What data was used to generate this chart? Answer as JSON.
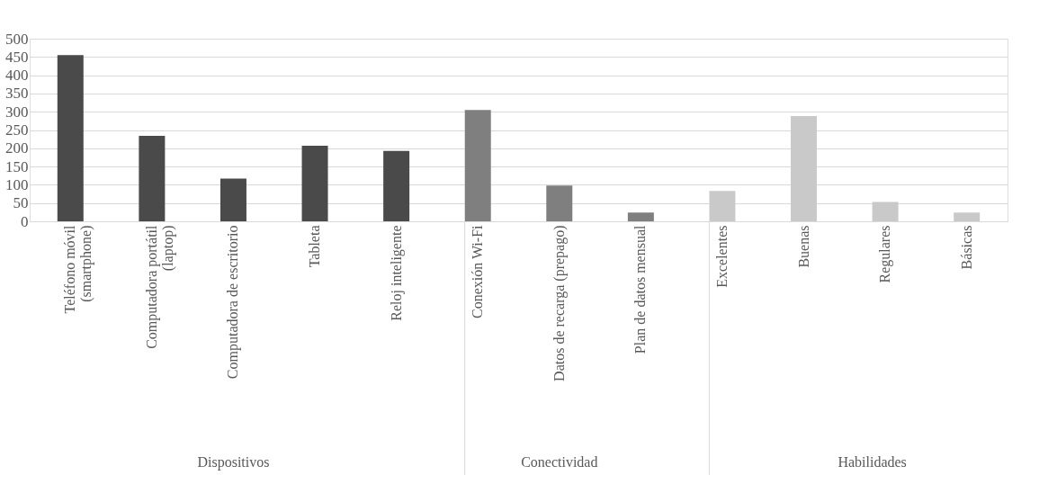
{
  "chart_data": {
    "type": "bar",
    "categories": [
      "Teléfono móvil (smartphone)",
      "Computadora portátil (laptop)",
      "Computadora de escritorio",
      "Tableta",
      "Reloj inteligente",
      "Conexión Wi-Fi",
      "Datos de recarga (prepago)",
      "Plan de datos mensual",
      "Excelentes",
      "Buenas",
      "Regulares",
      "Básicas"
    ],
    "values": [
      455,
      234,
      117,
      207,
      193,
      305,
      98,
      24,
      83,
      288,
      53,
      24
    ],
    "colors": [
      "#4a4a4a",
      "#4a4a4a",
      "#4a4a4a",
      "#4a4a4a",
      "#4a4a4a",
      "#7f7f7f",
      "#7f7f7f",
      "#7f7f7f",
      "#c9c9c9",
      "#c9c9c9",
      "#c9c9c9",
      "#c9c9c9"
    ],
    "annotations": [
      "Dispositivos",
      "Conectividad",
      "Habilidades"
    ],
    "ylim": [
      0,
      500
    ],
    "yticks": [
      0,
      50,
      100,
      150,
      200,
      250,
      300,
      350,
      400,
      450,
      500
    ],
    "grid": "y"
  }
}
